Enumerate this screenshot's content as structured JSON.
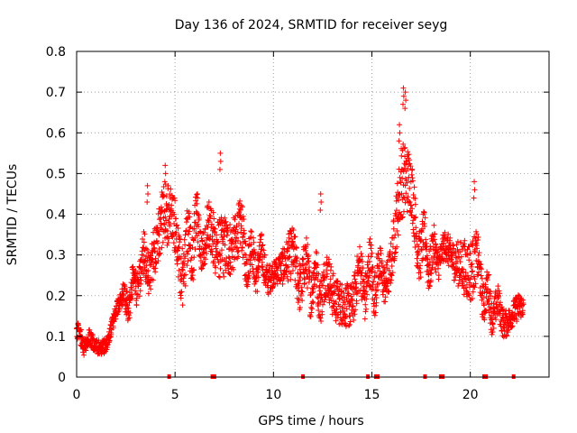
{
  "chart_data": {
    "type": "scatter",
    "title": "Day 136 of 2024, SRMTID for receiver seyg",
    "xlabel": "GPS time / hours",
    "ylabel": "SRMTID / TECUs",
    "xlim": [
      0,
      24
    ],
    "ylim": [
      0,
      0.8
    ],
    "xticks": [
      0,
      5,
      10,
      15,
      20
    ],
    "yticks": [
      0,
      0.1,
      0.2,
      0.3,
      0.4,
      0.5,
      0.6,
      0.7,
      0.8
    ],
    "xtick_labels": [
      "0",
      "5",
      "10",
      "15",
      "20"
    ],
    "ytick_labels": [
      "0",
      "0.1",
      "0.2",
      "0.3",
      "0.4",
      "0.5",
      "0.6",
      "0.7",
      "0.8"
    ],
    "grid": true,
    "marker": "+",
    "series": [
      {
        "name": "SRMTID",
        "color": "#ff0000",
        "envelope_x": [
          0,
          0.5,
          1.0,
          1.5,
          2.0,
          2.5,
          3.0,
          3.5,
          4.0,
          4.5,
          5.0,
          5.5,
          6.0,
          6.5,
          7.0,
          7.5,
          8.0,
          8.5,
          9.0,
          9.5,
          10.0,
          10.5,
          11.0,
          11.5,
          12.0,
          12.5,
          13.0,
          13.5,
          14.0,
          14.5,
          15.0,
          15.5,
          16.0,
          16.5,
          17.0,
          17.5,
          18.0,
          18.5,
          19.0,
          19.5,
          20.0,
          20.5,
          21.0,
          21.5,
          22.0,
          22.5,
          22.7
        ],
        "envelope_low": [
          0.06,
          0.05,
          0.05,
          0.06,
          0.14,
          0.13,
          0.16,
          0.18,
          0.2,
          0.22,
          0.22,
          0.16,
          0.25,
          0.24,
          0.22,
          0.24,
          0.25,
          0.22,
          0.2,
          0.2,
          0.2,
          0.17,
          0.15,
          0.16,
          0.14,
          0.13,
          0.11,
          0.12,
          0.12,
          0.13,
          0.14,
          0.16,
          0.2,
          0.28,
          0.3,
          0.22,
          0.2,
          0.25,
          0.22,
          0.2,
          0.18,
          0.15,
          0.1,
          0.09,
          0.1,
          0.11,
          0.12
        ],
        "envelope_high": [
          0.14,
          0.12,
          0.11,
          0.12,
          0.2,
          0.24,
          0.3,
          0.38,
          0.42,
          0.48,
          0.46,
          0.4,
          0.47,
          0.42,
          0.46,
          0.5,
          0.47,
          0.42,
          0.37,
          0.35,
          0.3,
          0.32,
          0.38,
          0.36,
          0.33,
          0.32,
          0.3,
          0.3,
          0.3,
          0.34,
          0.35,
          0.32,
          0.38,
          0.6,
          0.55,
          0.42,
          0.38,
          0.36,
          0.36,
          0.4,
          0.45,
          0.32,
          0.25,
          0.22,
          0.2,
          0.22,
          0.2
        ],
        "spikes": [
          {
            "x": 16.6,
            "y": 0.71
          },
          {
            "x": 16.7,
            "y": 0.7
          },
          {
            "x": 16.4,
            "y": 0.62
          },
          {
            "x": 4.5,
            "y": 0.52
          },
          {
            "x": 7.3,
            "y": 0.55
          },
          {
            "x": 12.4,
            "y": 0.45
          },
          {
            "x": 20.2,
            "y": 0.48
          },
          {
            "x": 3.6,
            "y": 0.47
          }
        ]
      }
    ],
    "baseline_marks_x": [
      4.7,
      6.9,
      7.0,
      11.5,
      14.8,
      15.2,
      15.3,
      17.7,
      18.5,
      18.6,
      20.7,
      20.8,
      22.2
    ]
  }
}
